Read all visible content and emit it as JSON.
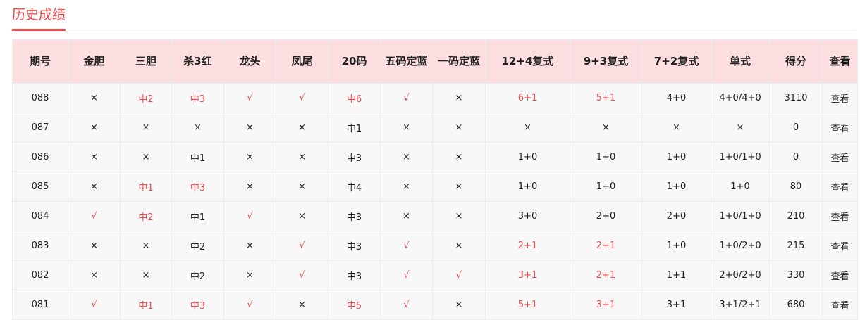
{
  "title": "历史成绩",
  "colors": {
    "accent": "#f5484a",
    "header_bg": "#fcdde0"
  },
  "headers": [
    "期号",
    "金胆",
    "三胆",
    "杀3红",
    "龙头",
    "凤尾",
    "20码",
    "五码定蓝",
    "一码定蓝",
    "12+4复式",
    "9+3复式",
    "7+2复式",
    "单式",
    "得分",
    "查看"
  ],
  "rows": [
    {
      "cells": [
        {
          "t": "088"
        },
        {
          "t": "×"
        },
        {
          "t": "中2",
          "hit": true
        },
        {
          "t": "中3",
          "hit": true
        },
        {
          "t": "√",
          "hit": true
        },
        {
          "t": "√",
          "hit": true
        },
        {
          "t": "中6",
          "hit": true
        },
        {
          "t": "√",
          "hit": true
        },
        {
          "t": "×"
        },
        {
          "t": "6+1",
          "hit": true
        },
        {
          "t": "5+1",
          "hit": true
        },
        {
          "t": "4+0"
        },
        {
          "t": "4+0/4+0"
        },
        {
          "t": "3110"
        },
        {
          "t": "查看"
        }
      ]
    },
    {
      "cells": [
        {
          "t": "087"
        },
        {
          "t": "×"
        },
        {
          "t": "×"
        },
        {
          "t": "×"
        },
        {
          "t": "×"
        },
        {
          "t": "×"
        },
        {
          "t": "中1"
        },
        {
          "t": "×"
        },
        {
          "t": "×"
        },
        {
          "t": "×"
        },
        {
          "t": "×"
        },
        {
          "t": "×"
        },
        {
          "t": "×"
        },
        {
          "t": "0"
        },
        {
          "t": "查看"
        }
      ]
    },
    {
      "cells": [
        {
          "t": "086"
        },
        {
          "t": "×"
        },
        {
          "t": "×"
        },
        {
          "t": "中1"
        },
        {
          "t": "×"
        },
        {
          "t": "×"
        },
        {
          "t": "中3"
        },
        {
          "t": "×"
        },
        {
          "t": "×"
        },
        {
          "t": "1+0"
        },
        {
          "t": "1+0"
        },
        {
          "t": "1+0"
        },
        {
          "t": "1+0/1+0"
        },
        {
          "t": "0"
        },
        {
          "t": "查看"
        }
      ]
    },
    {
      "cells": [
        {
          "t": "085"
        },
        {
          "t": "×"
        },
        {
          "t": "中1",
          "hit": true
        },
        {
          "t": "中3",
          "hit": true
        },
        {
          "t": "×"
        },
        {
          "t": "×"
        },
        {
          "t": "中4"
        },
        {
          "t": "×"
        },
        {
          "t": "×"
        },
        {
          "t": "1+0"
        },
        {
          "t": "1+0"
        },
        {
          "t": "1+0"
        },
        {
          "t": "1+0"
        },
        {
          "t": "80"
        },
        {
          "t": "查看"
        }
      ]
    },
    {
      "cells": [
        {
          "t": "084"
        },
        {
          "t": "√",
          "hit": true
        },
        {
          "t": "中2",
          "hit": true
        },
        {
          "t": "中1"
        },
        {
          "t": "√",
          "hit": true
        },
        {
          "t": "×"
        },
        {
          "t": "中3"
        },
        {
          "t": "×"
        },
        {
          "t": "×"
        },
        {
          "t": "3+0"
        },
        {
          "t": "2+0"
        },
        {
          "t": "2+0"
        },
        {
          "t": "1+0/1+0"
        },
        {
          "t": "210"
        },
        {
          "t": "查看"
        }
      ]
    },
    {
      "cells": [
        {
          "t": "083"
        },
        {
          "t": "×"
        },
        {
          "t": "×"
        },
        {
          "t": "中2"
        },
        {
          "t": "×"
        },
        {
          "t": "√",
          "hit": true
        },
        {
          "t": "中3"
        },
        {
          "t": "√",
          "hit": true
        },
        {
          "t": "×"
        },
        {
          "t": "2+1",
          "hit": true
        },
        {
          "t": "2+1",
          "hit": true
        },
        {
          "t": "1+0"
        },
        {
          "t": "1+0/2+0"
        },
        {
          "t": "215"
        },
        {
          "t": "查看"
        }
      ]
    },
    {
      "cells": [
        {
          "t": "082"
        },
        {
          "t": "×"
        },
        {
          "t": "×"
        },
        {
          "t": "中2"
        },
        {
          "t": "×"
        },
        {
          "t": "√",
          "hit": true
        },
        {
          "t": "中3"
        },
        {
          "t": "√",
          "hit": true
        },
        {
          "t": "√",
          "hit": true
        },
        {
          "t": "3+1",
          "hit": true
        },
        {
          "t": "2+1",
          "hit": true
        },
        {
          "t": "1+1"
        },
        {
          "t": "2+0/2+0"
        },
        {
          "t": "330"
        },
        {
          "t": "查看"
        }
      ]
    },
    {
      "cells": [
        {
          "t": "081"
        },
        {
          "t": "√",
          "hit": true
        },
        {
          "t": "中1",
          "hit": true
        },
        {
          "t": "中3",
          "hit": true
        },
        {
          "t": "√",
          "hit": true
        },
        {
          "t": "×"
        },
        {
          "t": "中5",
          "hit": true
        },
        {
          "t": "√",
          "hit": true
        },
        {
          "t": "×"
        },
        {
          "t": "5+1",
          "hit": true
        },
        {
          "t": "3+1",
          "hit": true
        },
        {
          "t": "3+1"
        },
        {
          "t": "3+1/2+1"
        },
        {
          "t": "680"
        },
        {
          "t": "查看"
        }
      ]
    }
  ]
}
